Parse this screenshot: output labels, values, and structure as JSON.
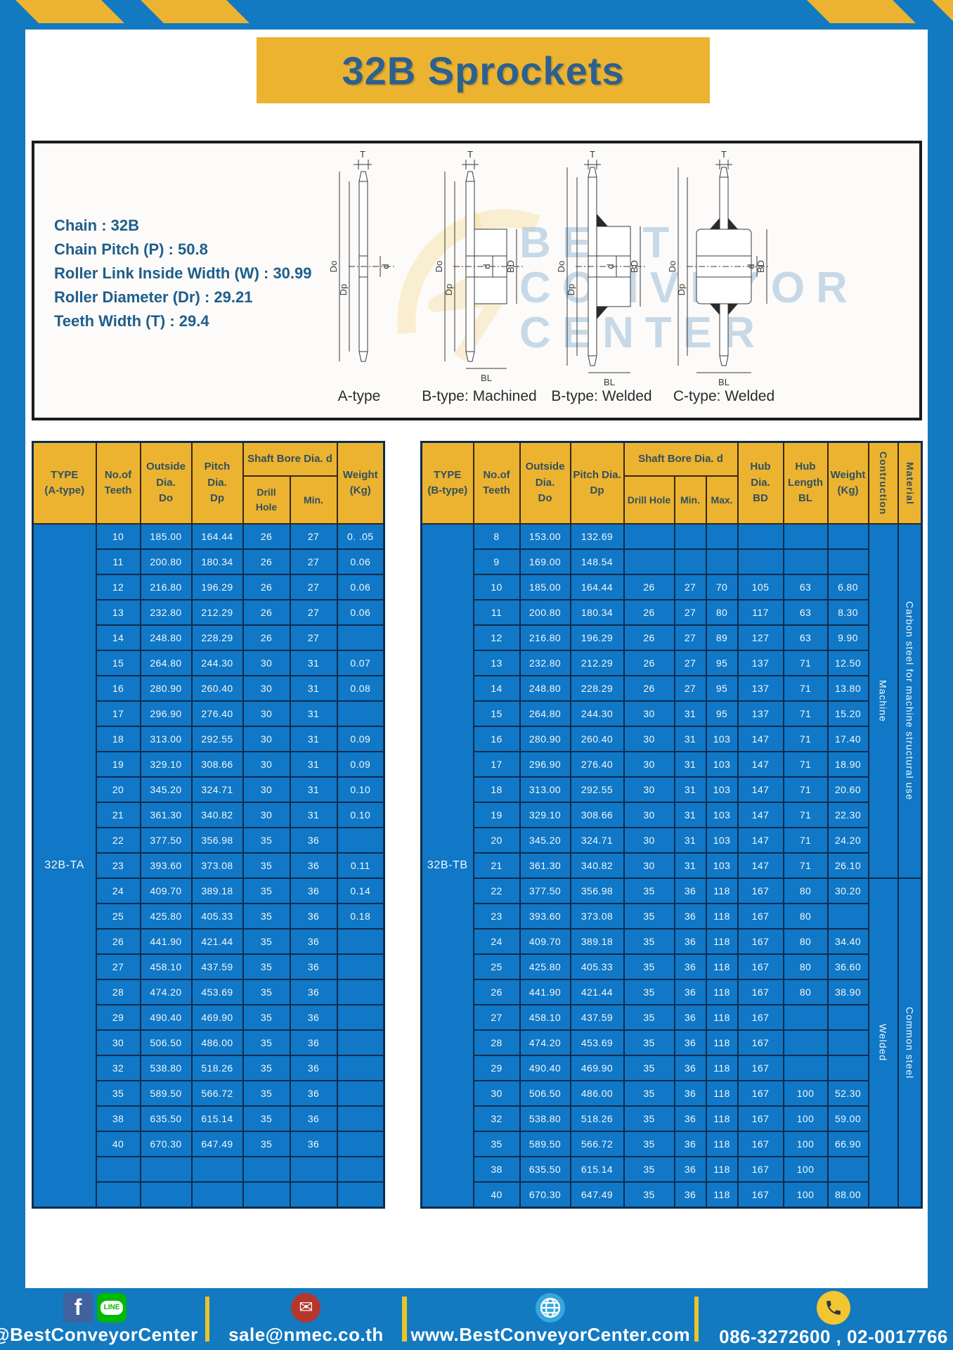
{
  "page": {
    "title": "32B Sprockets"
  },
  "specs": {
    "lines": [
      "Chain  : 32B",
      "Chain Pitch (P)  :  50.8",
      "Roller Link Inside Width (W)  :  30.99",
      "Roller Diameter (Dr)  : 29.21",
      "Teeth Width (T)  :  29.4"
    ]
  },
  "diagram": {
    "types": [
      "A-type",
      "B-type: Machined",
      "B-type: Welded",
      "C-type: Welded"
    ],
    "dims": [
      "T",
      "Do",
      "Dp",
      "d",
      "BD",
      "BL"
    ],
    "watermark": {
      "line1": "BEST",
      "line2": "CONVEYOR",
      "line3": "CENTER"
    }
  },
  "table_a": {
    "type_label": "32B-TA",
    "headers": {
      "type": "TYPE\n(A-type)",
      "teeth": "No.of\nTeeth",
      "outside": "Outside\nDia.\nDo",
      "pitch": "Pitch Dia.\nDp",
      "shaft_bore": "Shaft Bore Dia. d",
      "drill": "Drill Hole",
      "min": "Min.",
      "weight": "Weight\n(Kg)"
    },
    "rows": [
      [
        "10",
        "185.00",
        "164.44",
        "26",
        "27",
        "0. .05"
      ],
      [
        "11",
        "200.80",
        "180.34",
        "26",
        "27",
        "0.06"
      ],
      [
        "12",
        "216.80",
        "196.29",
        "26",
        "27",
        "0.06"
      ],
      [
        "13",
        "232.80",
        "212.29",
        "26",
        "27",
        "0.06"
      ],
      [
        "14",
        "248.80",
        "228.29",
        "26",
        "27",
        ""
      ],
      [
        "15",
        "264.80",
        "244.30",
        "30",
        "31",
        "0.07"
      ],
      [
        "16",
        "280.90",
        "260.40",
        "30",
        "31",
        "0.08"
      ],
      [
        "17",
        "296.90",
        "276.40",
        "30",
        "31",
        ""
      ],
      [
        "18",
        "313.00",
        "292.55",
        "30",
        "31",
        "0.09"
      ],
      [
        "19",
        "329.10",
        "308.66",
        "30",
        "31",
        "0.09"
      ],
      [
        "20",
        "345.20",
        "324.71",
        "30",
        "31",
        "0.10"
      ],
      [
        "21",
        "361.30",
        "340.82",
        "30",
        "31",
        "0.10"
      ],
      [
        "22",
        "377.50",
        "356.98",
        "35",
        "36",
        ""
      ],
      [
        "23",
        "393.60",
        "373.08",
        "35",
        "36",
        "0.11"
      ],
      [
        "24",
        "409.70",
        "389.18",
        "35",
        "36",
        "0.14"
      ],
      [
        "25",
        "425.80",
        "405.33",
        "35",
        "36",
        "0.18"
      ],
      [
        "26",
        "441.90",
        "421.44",
        "35",
        "36",
        ""
      ],
      [
        "27",
        "458.10",
        "437.59",
        "35",
        "36",
        ""
      ],
      [
        "28",
        "474.20",
        "453.69",
        "35",
        "36",
        ""
      ],
      [
        "29",
        "490.40",
        "469.90",
        "35",
        "36",
        ""
      ],
      [
        "30",
        "506.50",
        "486.00",
        "35",
        "36",
        ""
      ],
      [
        "32",
        "538.80",
        "518.26",
        "35",
        "36",
        ""
      ],
      [
        "35",
        "589.50",
        "566.72",
        "35",
        "36",
        ""
      ],
      [
        "38",
        "635.50",
        "615.14",
        "35",
        "36",
        ""
      ],
      [
        "40",
        "670.30",
        "647.49",
        "35",
        "36",
        ""
      ],
      [
        "",
        "",
        "",
        "",
        "",
        ""
      ],
      [
        "",
        "",
        "",
        "",
        "",
        ""
      ]
    ]
  },
  "table_b": {
    "type_label": "32B-TB",
    "headers": {
      "type": "TYPE\n(B-type)",
      "teeth": "No.of\nTeeth",
      "outside": "Outside\nDia.\nDo",
      "pitch": "Pitch Dia.\nDp",
      "shaft_bore": "Shaft Bore Dia. d",
      "drill": "Drill Hole",
      "min": "Min.",
      "max": "Max.",
      "hub_dia": "Hub Dia.\nBD",
      "hub_len": "Hub\nLength\nBL",
      "weight": "Weight\n(Kg)",
      "construction": "Contruction",
      "material": "Material"
    },
    "rows": [
      [
        "8",
        "153.00",
        "132.69",
        "",
        "",
        "",
        "",
        "",
        ""
      ],
      [
        "9",
        "169.00",
        "148.54",
        "",
        "",
        "",
        "",
        "",
        ""
      ],
      [
        "10",
        "185.00",
        "164.44",
        "26",
        "27",
        "70",
        "105",
        "63",
        "6.80"
      ],
      [
        "11",
        "200.80",
        "180.34",
        "26",
        "27",
        "80",
        "117",
        "63",
        "8.30"
      ],
      [
        "12",
        "216.80",
        "196.29",
        "26",
        "27",
        "89",
        "127",
        "63",
        "9.90"
      ],
      [
        "13",
        "232.80",
        "212.29",
        "26",
        "27",
        "95",
        "137",
        "71",
        "12.50"
      ],
      [
        "14",
        "248.80",
        "228.29",
        "26",
        "27",
        "95",
        "137",
        "71",
        "13.80"
      ],
      [
        "15",
        "264.80",
        "244.30",
        "30",
        "31",
        "95",
        "137",
        "71",
        "15.20"
      ],
      [
        "16",
        "280.90",
        "260.40",
        "30",
        "31",
        "103",
        "147",
        "71",
        "17.40"
      ],
      [
        "17",
        "296.90",
        "276.40",
        "30",
        "31",
        "103",
        "147",
        "71",
        "18.90"
      ],
      [
        "18",
        "313.00",
        "292.55",
        "30",
        "31",
        "103",
        "147",
        "71",
        "20.60"
      ],
      [
        "19",
        "329.10",
        "308.66",
        "30",
        "31",
        "103",
        "147",
        "71",
        "22.30"
      ],
      [
        "20",
        "345.20",
        "324.71",
        "30",
        "31",
        "103",
        "147",
        "71",
        "24.20"
      ],
      [
        "21",
        "361.30",
        "340.82",
        "30",
        "31",
        "103",
        "147",
        "71",
        "26.10"
      ],
      [
        "22",
        "377.50",
        "356.98",
        "35",
        "36",
        "118",
        "167",
        "80",
        "30.20"
      ],
      [
        "23",
        "393.60",
        "373.08",
        "35",
        "36",
        "118",
        "167",
        "80",
        ""
      ],
      [
        "24",
        "409.70",
        "389.18",
        "35",
        "36",
        "118",
        "167",
        "80",
        "34.40"
      ],
      [
        "25",
        "425.80",
        "405.33",
        "35",
        "36",
        "118",
        "167",
        "80",
        "36.60"
      ],
      [
        "26",
        "441.90",
        "421.44",
        "35",
        "36",
        "118",
        "167",
        "80",
        "38.90"
      ],
      [
        "27",
        "458.10",
        "437.59",
        "35",
        "36",
        "118",
        "167",
        "",
        ""
      ],
      [
        "28",
        "474.20",
        "453.69",
        "35",
        "36",
        "118",
        "167",
        "",
        ""
      ],
      [
        "29",
        "490.40",
        "469.90",
        "35",
        "36",
        "118",
        "167",
        "",
        ""
      ],
      [
        "30",
        "506.50",
        "486.00",
        "35",
        "36",
        "118",
        "167",
        "100",
        "52.30"
      ],
      [
        "32",
        "538.80",
        "518.26",
        "35",
        "36",
        "118",
        "167",
        "100",
        "59.00"
      ],
      [
        "35",
        "589.50",
        "566.72",
        "35",
        "36",
        "118",
        "167",
        "100",
        "66.90"
      ],
      [
        "38",
        "635.50",
        "615.14",
        "35",
        "36",
        "118",
        "167",
        "100",
        ""
      ],
      [
        "40",
        "670.30",
        "647.49",
        "35",
        "36",
        "118",
        "167",
        "100",
        "88.00"
      ]
    ],
    "construction_groups": [
      {
        "label": "Machine",
        "rows": 14
      },
      {
        "label": "Welded",
        "rows": 13
      }
    ],
    "material_groups": [
      {
        "label": "Carbon steel for machine structural use",
        "rows": 14
      },
      {
        "label": "Common steel",
        "rows": 13
      }
    ]
  },
  "footer": {
    "social_handle": "@BestConveyorCenter",
    "line_badge": "LINE",
    "facebook_glyph": "f",
    "email": "sale@nmec.co.th",
    "website": "www.BestConveyorCenter.com",
    "phones": "086-3272600 , 02-0017766"
  },
  "colors": {
    "frame_blue": "#1379c0",
    "accent_yellow": "#ecb331",
    "cell_blue": "#1078c6",
    "border_navy": "#0d2c50",
    "title_text": "#2c608f",
    "header_text": "#31505e",
    "facebook_blue": "#41629e",
    "line_green": "#00b900",
    "email_red": "#b5362b",
    "globe_blue": "#35a7dc",
    "phone_yellow": "#f3c531"
  }
}
